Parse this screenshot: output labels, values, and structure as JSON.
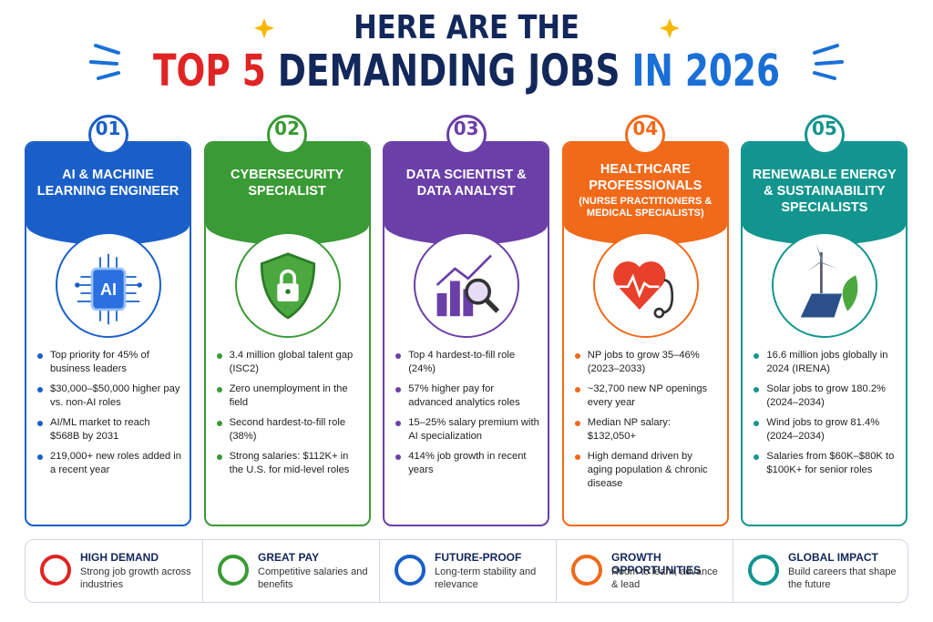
{
  "header": {
    "line1": "HERE ARE THE",
    "line2": [
      "TOP 5",
      "DEMANDING JOBS",
      "IN 2026"
    ]
  },
  "cards": [
    {
      "number": "01",
      "title": "AI & MACHINE LEARNING ENGINEER",
      "icon_label": "AI",
      "bullets": [
        "Top priority for 45% of business leaders",
        "$30,000–$50,000 higher pay vs. non-AI roles",
        "AI/ML market to reach $568B by 2031",
        "219,000+ new roles added in a recent year"
      ]
    },
    {
      "number": "02",
      "title": "CYBERSECURITY SPECIALIST",
      "bullets": [
        "3.4 million global talent gap (ISC2)",
        "Zero unemployment in the field",
        "Second hardest-to-fill role (38%)",
        "Strong salaries: $112K+ in the U.S. for mid-level roles"
      ]
    },
    {
      "number": "03",
      "title": "DATA SCIENTIST & DATA ANALYST",
      "bullets": [
        "Top 4 hardest-to-fill role (24%)",
        "57% higher pay for advanced analytics roles",
        "15–25% salary premium with AI specialization",
        "414% job growth in recent years"
      ]
    },
    {
      "number": "04",
      "title": "HEALTHCARE PROFESSIONALS",
      "subtitle": "(NURSE PRACTITIONERS & MEDICAL SPECIALISTS)",
      "bullets": [
        "NP jobs to grow 35–46% (2023–2033)",
        "~32,700 new NP openings every year",
        "Median NP salary: $132,050+",
        "High demand driven by aging population & chronic disease"
      ]
    },
    {
      "number": "05",
      "title": "RENEWABLE ENERGY & SUSTAINABILITY SPECIALISTS",
      "bullets": [
        "16.6 million jobs globally in 2024 (IRENA)",
        "Solar jobs to grow 180.2% (2024–2034)",
        "Wind jobs to grow 81.4% (2024–2034)",
        "Salaries from $60K–$80K to $100K+ for senior roles"
      ]
    }
  ],
  "footer": [
    {
      "title": "HIGH DEMAND",
      "text": "Strong job growth across industries"
    },
    {
      "title": "GREAT PAY",
      "text": "Competitive salaries and benefits"
    },
    {
      "title": "FUTURE-PROOF",
      "text": "Long-term stability and relevance"
    },
    {
      "title": "GROWTH OPPORTUNITIES",
      "text": "Room to learn, advance & lead"
    },
    {
      "title": "GLOBAL IMPACT",
      "text": "Build careers that shape the future"
    }
  ]
}
